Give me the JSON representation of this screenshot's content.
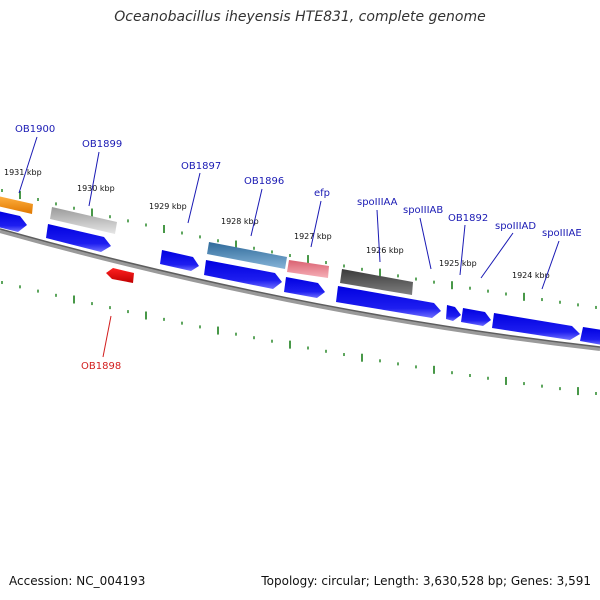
{
  "title": "Oceanobacillus iheyensis HTE831, complete genome",
  "footer": {
    "accession": "Accession: NC_004193",
    "summary": "Topology: circular; Length: 3,630,528 bp; Genes: 3,591"
  },
  "colors": {
    "backbone": "#7a7a7a",
    "ticks": "#1a7f1a",
    "cds_forward": "#1e1ef0",
    "label_forward": "#1a1ab4",
    "label_reverse": "#d21e1e"
  },
  "kbp_labels": [
    "1931 kbp",
    "1930 kbp",
    "1929 kbp",
    "1928 kbp",
    "1927 kbp",
    "1926 kbp",
    "1925 kbp",
    "1924 kbp"
  ],
  "gene_labels": [
    {
      "text": "OB1900",
      "strand": "forward"
    },
    {
      "text": "OB1899",
      "strand": "forward"
    },
    {
      "text": "OB1897",
      "strand": "forward"
    },
    {
      "text": "OB1896",
      "strand": "forward"
    },
    {
      "text": "efp",
      "strand": "forward"
    },
    {
      "text": "spoIIIAA",
      "strand": "forward"
    },
    {
      "text": "spoIIIAB",
      "strand": "forward"
    },
    {
      "text": "OB1892",
      "strand": "forward"
    },
    {
      "text": "spoIIIAD",
      "strand": "forward"
    },
    {
      "text": "spoIIIAE",
      "strand": "forward"
    },
    {
      "text": "OB1898",
      "strand": "reverse"
    }
  ],
  "feature_colors": [
    "#f08c00",
    "#b4b4b4",
    "#4682b4",
    "#e8808c",
    "#5a5a5a",
    "#e00000"
  ]
}
